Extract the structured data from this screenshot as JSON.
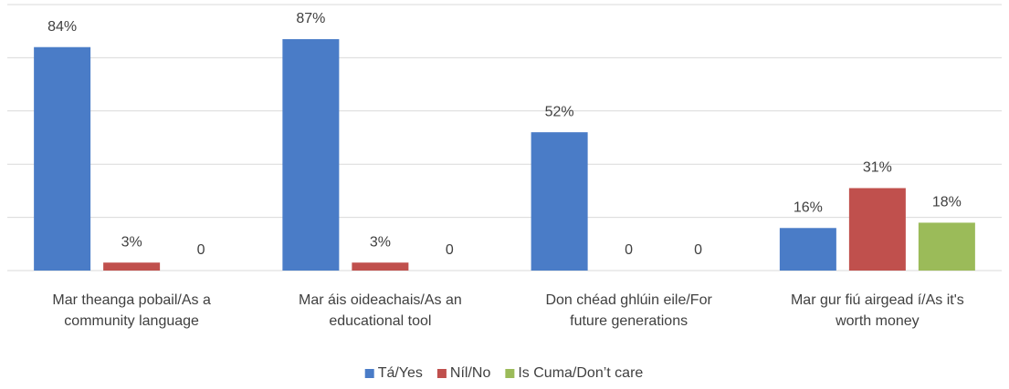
{
  "chart_data": {
    "type": "bar",
    "categories": [
      [
        "Mar theanga pobail/As a",
        "community language"
      ],
      [
        "Mar áis oideachais/As an",
        "educational tool"
      ],
      [
        "Don chéad ghlúin eile/For",
        "future generations"
      ],
      [
        "Mar gur fiú airgead í/As it's",
        "worth money"
      ]
    ],
    "series": [
      {
        "name": "Tá/Yes",
        "color": "#4a7cc7",
        "values": [
          84,
          87,
          52,
          16
        ],
        "value_labels": [
          "84%",
          "87%",
          "52%",
          "16%"
        ]
      },
      {
        "name": "Níl/No",
        "color": "#c0504d",
        "values": [
          3,
          3,
          0,
          31
        ],
        "value_labels": [
          "3%",
          "3%",
          "0",
          "31%"
        ]
      },
      {
        "name": "Is Cuma/Don’t care",
        "color": "#9bbb59",
        "values": [
          0,
          0,
          0,
          18
        ],
        "value_labels": [
          "0",
          "0",
          "0",
          "18%"
        ]
      }
    ],
    "ylim": [
      0,
      100
    ],
    "yticks": [
      0,
      20,
      40,
      60,
      80,
      100
    ],
    "grid": true,
    "legend": "bottom"
  }
}
